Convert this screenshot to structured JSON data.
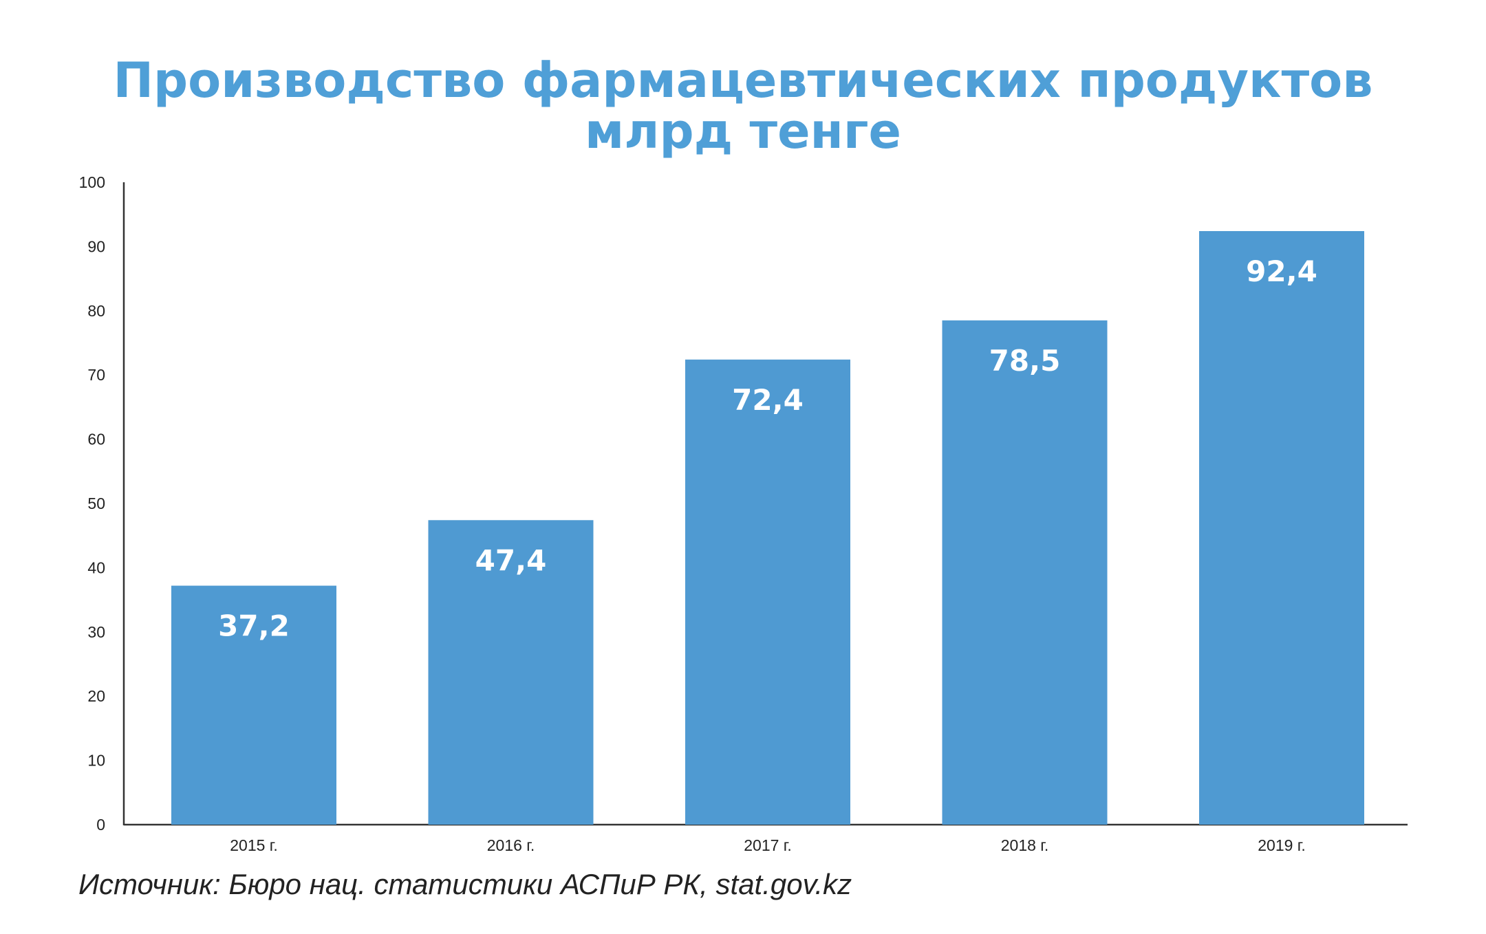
{
  "chart_data": {
    "type": "bar",
    "title": "Производство фармацевтических продуктов",
    "subtitle": "млрд тенге",
    "categories": [
      "2015 г.",
      "2016 г.",
      "2017 г.",
      "2018 г.",
      "2019 г."
    ],
    "values": [
      37.2,
      47.4,
      72.4,
      78.5,
      92.4
    ],
    "value_labels": [
      "37,2",
      "47,4",
      "72,4",
      "78,5",
      "92,4"
    ],
    "ylim": [
      0,
      100
    ],
    "yticks": [
      0,
      10,
      20,
      30,
      40,
      50,
      60,
      70,
      80,
      90,
      100
    ],
    "grid": false,
    "bar_color": "#4f9ad2",
    "title_color": "#4f9fd7"
  },
  "source": "Источник: Бюро нац. статистики АСПиР РК, stat.gov.kz"
}
